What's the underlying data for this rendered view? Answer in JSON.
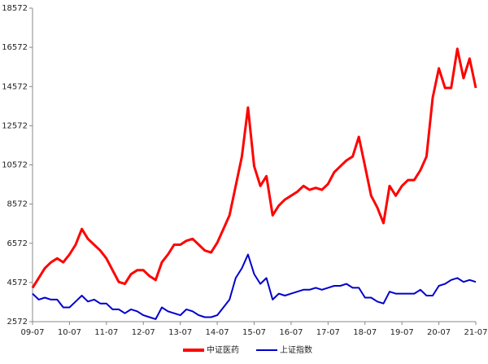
{
  "chart_data": {
    "type": "line",
    "categories": [
      "09-07",
      null,
      null,
      null,
      null,
      null,
      "10-07",
      null,
      null,
      null,
      null,
      null,
      "11-07",
      null,
      null,
      null,
      null,
      null,
      "12-07",
      null,
      null,
      null,
      null,
      null,
      "13-07",
      null,
      null,
      null,
      null,
      null,
      "14-07",
      null,
      null,
      null,
      null,
      null,
      "15-07",
      null,
      null,
      null,
      null,
      null,
      "16-07",
      null,
      null,
      null,
      null,
      null,
      "17-07",
      null,
      null,
      null,
      null,
      null,
      "18-07",
      null,
      null,
      null,
      null,
      null,
      "19-07",
      null,
      null,
      null,
      null,
      null,
      "20-07",
      null,
      null,
      null,
      null,
      null,
      "21-07"
    ],
    "series": [
      {
        "name": "中证医药",
        "color": "#ff0000",
        "values": [
          4300,
          4800,
          5300,
          5600,
          5800,
          5600,
          6000,
          6500,
          7300,
          6800,
          6500,
          6200,
          5800,
          5200,
          4600,
          4500,
          5000,
          5200,
          5200,
          4900,
          4700,
          5600,
          6000,
          6500,
          6500,
          6700,
          6800,
          6500,
          6200,
          6100,
          6600,
          7300,
          8000,
          9500,
          11000,
          13500,
          10500,
          9500,
          10000,
          8000,
          8500,
          8800,
          9000,
          9200,
          9500,
          9300,
          9400,
          9300,
          9600,
          10200,
          10500,
          10800,
          11000,
          12000,
          10500,
          9000,
          8400,
          7600,
          9500,
          9000,
          9500,
          9800,
          9800,
          10300,
          11000,
          14000,
          15500,
          14500,
          14500,
          16500,
          15000,
          16000,
          14500
        ]
      },
      {
        "name": "上证指数",
        "color": "#0000cc",
        "values": [
          4000,
          3700,
          3800,
          3700,
          3700,
          3300,
          3300,
          3600,
          3900,
          3600,
          3700,
          3500,
          3500,
          3200,
          3200,
          3000,
          3200,
          3100,
          2900,
          2800,
          2700,
          3300,
          3100,
          3000,
          2900,
          3200,
          3100,
          2900,
          2800,
          2800,
          2900,
          3300,
          3700,
          4800,
          5300,
          6000,
          5000,
          4500,
          4800,
          3700,
          4000,
          3900,
          4000,
          4100,
          4200,
          4200,
          4300,
          4200,
          4300,
          4400,
          4400,
          4500,
          4300,
          4300,
          3800,
          3800,
          3600,
          3500,
          4100,
          4000,
          4000,
          4000,
          4000,
          4200,
          3900,
          3900,
          4400,
          4500,
          4700,
          4800,
          4600,
          4700,
          4600
        ]
      }
    ],
    "ylim": [
      2572,
      18572
    ],
    "yticks": [
      2572,
      4572,
      6572,
      8572,
      10572,
      12572,
      14572,
      16572,
      18572
    ],
    "grid": false,
    "legend": "bottom"
  }
}
